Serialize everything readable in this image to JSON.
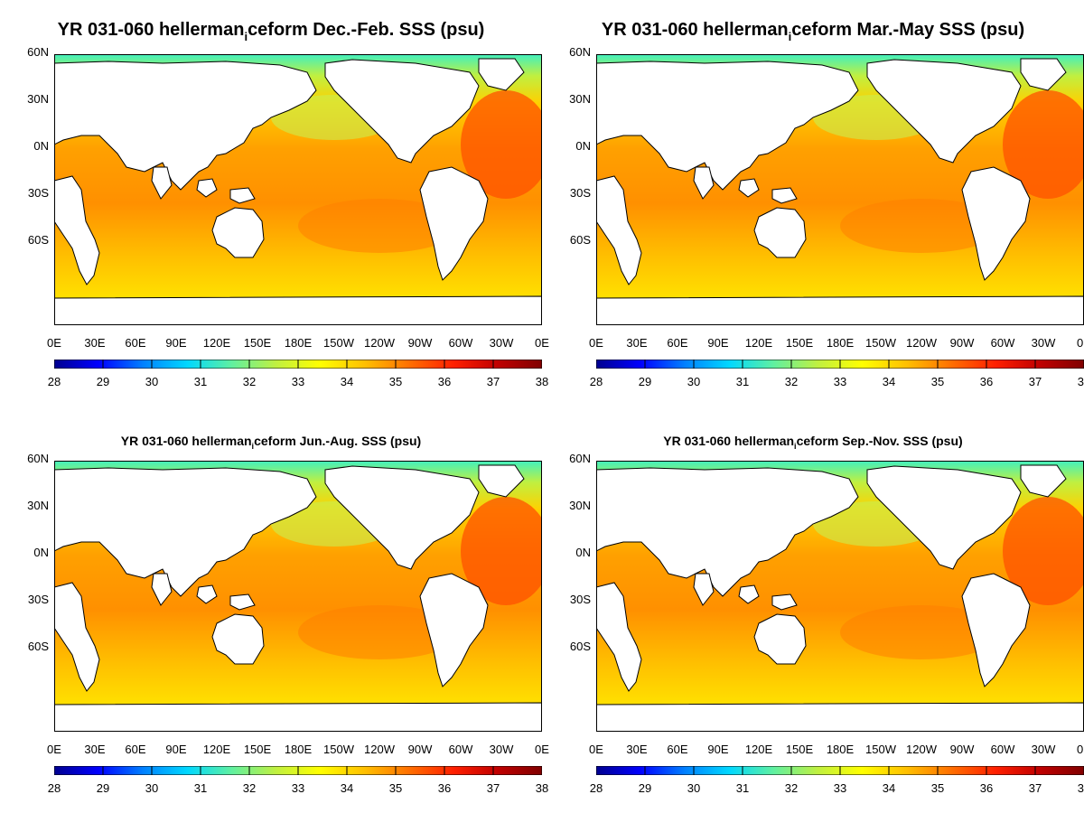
{
  "panels": [
    {
      "title_a": "YR 031-060 hellerman",
      "title_sub": "i",
      "title_b": "ceform Dec.-Feb. SSS (psu)",
      "size": "big"
    },
    {
      "title_a": "YR 031-060 hellerman",
      "title_sub": "i",
      "title_b": "ceform Mar.-May SSS (psu)",
      "size": "big"
    },
    {
      "title_a": "YR 031-060 hellerman",
      "title_sub": "i",
      "title_b": "ceform Jun.-Aug. SSS (psu)",
      "size": "small"
    },
    {
      "title_a": "YR 031-060 hellerman",
      "title_sub": "i",
      "title_b": "ceform Sep.-Nov. SSS (psu)",
      "size": "small"
    }
  ],
  "lat_labels": [
    "60N",
    "30N",
    "0N",
    "30S",
    "60S"
  ],
  "lon_labels": [
    "0E",
    "30E",
    "60E",
    "90E",
    "120E",
    "150E",
    "180E",
    "150W",
    "120W",
    "90W",
    "60W",
    "30W",
    "0E"
  ],
  "colorbar": {
    "ticks": [
      "28",
      "29",
      "30",
      "31",
      "32",
      "33",
      "34",
      "35",
      "36",
      "37",
      "38"
    ],
    "min": 28,
    "max": 38,
    "colors": [
      "#00008f",
      "#0000ff",
      "#0080ff",
      "#00d8ff",
      "#60f0a0",
      "#c0f040",
      "#ffff00",
      "#ffc000",
      "#ff7000",
      "#ff2000",
      "#c00000",
      "#800000"
    ]
  },
  "colors": {
    "land": "#ffffff",
    "coast": "#000000",
    "arctic": "#40f0c0"
  }
}
